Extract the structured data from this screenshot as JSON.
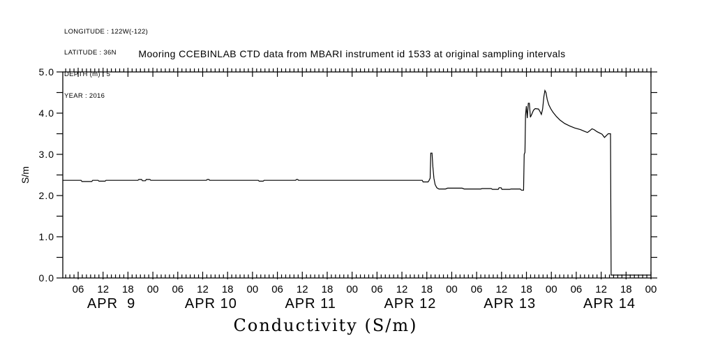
{
  "metadata_block": {
    "lines": [
      "LONGITUDE : 122W(-122)",
      "LATITUDE : 36N",
      "DEPTH (m) : 5",
      "YEAR : 2016"
    ]
  },
  "colors": {
    "line": "#000000",
    "background": "#ffffff",
    "text": "#000000"
  },
  "chart_data": {
    "type": "line",
    "title": "Mooring CCEBINLAB CTD data from MBARI instrument id 1533 at original sampling intervals",
    "xlabel": "Conductivity (S/m)",
    "ylabel": "S/m",
    "x_unit": "hours since 2016-04-09 00:00",
    "xlim": [
      2.3,
      144
    ],
    "ylim": [
      0.0,
      5.0
    ],
    "grid": false,
    "legend_position": "none",
    "y_major_ticks": [
      0,
      1,
      2,
      3,
      4,
      5
    ],
    "y_major_tick_labels": [
      "0.0",
      "1.0",
      "2.0",
      "3.0",
      "4.0",
      "5.0"
    ],
    "y_minor_tick_step": 0.5,
    "x_major_tick_step_hours": 6,
    "x_minor_tick_step_hours": 1,
    "x_major_tick_label_cycle": [
      "06",
      "12",
      "18",
      "00"
    ],
    "day_labels": [
      {
        "t": 14,
        "label": "APR  9"
      },
      {
        "t": 38,
        "label": "APR 10"
      },
      {
        "t": 62,
        "label": "APR 11"
      },
      {
        "t": 86,
        "label": "APR 12"
      },
      {
        "t": 110,
        "label": "APR 13"
      },
      {
        "t": 134,
        "label": "APR 14"
      }
    ],
    "series": [
      {
        "name": "conductivity",
        "color": "#000000",
        "points": [
          [
            2.3,
            2.37
          ],
          [
            6.7,
            2.37
          ],
          [
            6.9,
            2.34
          ],
          [
            9.3,
            2.34
          ],
          [
            9.5,
            2.37
          ],
          [
            10.8,
            2.37
          ],
          [
            11.0,
            2.35
          ],
          [
            12.5,
            2.35
          ],
          [
            12.7,
            2.37
          ],
          [
            20.4,
            2.37
          ],
          [
            20.6,
            2.39
          ],
          [
            21.3,
            2.39
          ],
          [
            21.5,
            2.36
          ],
          [
            22.2,
            2.36
          ],
          [
            22.4,
            2.39
          ],
          [
            23.3,
            2.39
          ],
          [
            23.5,
            2.37
          ],
          [
            36.9,
            2.37
          ],
          [
            37.1,
            2.39
          ],
          [
            37.5,
            2.39
          ],
          [
            37.7,
            2.37
          ],
          [
            49.4,
            2.37
          ],
          [
            49.6,
            2.35
          ],
          [
            50.6,
            2.35
          ],
          [
            50.8,
            2.37
          ],
          [
            58.4,
            2.37
          ],
          [
            58.6,
            2.39
          ],
          [
            58.9,
            2.39
          ],
          [
            59.1,
            2.37
          ],
          [
            88.9,
            2.37
          ],
          [
            89.1,
            2.33
          ],
          [
            90.3,
            2.33
          ],
          [
            90.5,
            2.36
          ],
          [
            90.8,
            2.42
          ],
          [
            90.95,
            3.03
          ],
          [
            91.25,
            3.03
          ],
          [
            91.45,
            2.7
          ],
          [
            91.7,
            2.42
          ],
          [
            92.0,
            2.27
          ],
          [
            92.4,
            2.19
          ],
          [
            92.9,
            2.16
          ],
          [
            94.5,
            2.16
          ],
          [
            95.0,
            2.18
          ],
          [
            98.5,
            2.18
          ],
          [
            99.0,
            2.16
          ],
          [
            103.0,
            2.16
          ],
          [
            103.3,
            2.17
          ],
          [
            105.5,
            2.17
          ],
          [
            105.8,
            2.15
          ],
          [
            107.2,
            2.15
          ],
          [
            107.4,
            2.19
          ],
          [
            107.9,
            2.19
          ],
          [
            108.1,
            2.15
          ],
          [
            110.0,
            2.15
          ],
          [
            110.3,
            2.16
          ],
          [
            112.5,
            2.16
          ],
          [
            112.8,
            2.13
          ],
          [
            113.3,
            2.13
          ],
          [
            113.45,
            3.0
          ],
          [
            113.65,
            3.05
          ],
          [
            113.78,
            3.95
          ],
          [
            113.98,
            4.17
          ],
          [
            114.2,
            3.88
          ],
          [
            114.45,
            4.24
          ],
          [
            114.7,
            4.24
          ],
          [
            114.95,
            3.9
          ],
          [
            115.3,
            3.98
          ],
          [
            115.7,
            4.07
          ],
          [
            116.1,
            4.11
          ],
          [
            116.9,
            4.1
          ],
          [
            117.3,
            4.03
          ],
          [
            117.6,
            3.97
          ],
          [
            117.9,
            4.1
          ],
          [
            118.2,
            4.4
          ],
          [
            118.45,
            4.55
          ],
          [
            118.7,
            4.5
          ],
          [
            119.0,
            4.33
          ],
          [
            119.4,
            4.2
          ],
          [
            119.9,
            4.1
          ],
          [
            120.4,
            4.02
          ],
          [
            121.2,
            3.92
          ],
          [
            122.1,
            3.83
          ],
          [
            123.2,
            3.75
          ],
          [
            124.4,
            3.69
          ],
          [
            125.6,
            3.64
          ],
          [
            127.0,
            3.6
          ],
          [
            128.2,
            3.55
          ],
          [
            128.7,
            3.53
          ],
          [
            129.2,
            3.57
          ],
          [
            129.8,
            3.62
          ],
          [
            130.3,
            3.6
          ],
          [
            131.0,
            3.55
          ],
          [
            131.6,
            3.52
          ],
          [
            132.2,
            3.49
          ],
          [
            132.8,
            3.41
          ],
          [
            133.2,
            3.45
          ],
          [
            133.7,
            3.5
          ],
          [
            134.25,
            3.5
          ],
          [
            134.4,
            0.07
          ],
          [
            136.0,
            0.07
          ],
          [
            140.0,
            0.07
          ],
          [
            144.0,
            0.07
          ]
        ]
      }
    ]
  }
}
